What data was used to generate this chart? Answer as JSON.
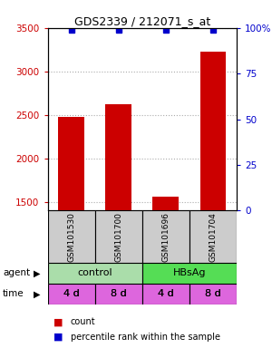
{
  "title": "GDS2339 / 212071_s_at",
  "samples": [
    "GSM101530",
    "GSM101700",
    "GSM101696",
    "GSM101704"
  ],
  "count_values": [
    2480,
    2620,
    1560,
    3230
  ],
  "percentile_values": [
    99,
    99,
    99,
    99
  ],
  "ylim_left": [
    1400,
    3500
  ],
  "ylim_right": [
    0,
    100
  ],
  "yticks_left": [
    1500,
    2000,
    2500,
    3000,
    3500
  ],
  "ytick_right_labels": [
    "0",
    "25",
    "50",
    "75",
    "100%"
  ],
  "yticks_right": [
    0,
    25,
    50,
    75,
    100
  ],
  "bar_color": "#cc0000",
  "blue_color": "#0000cc",
  "agent_color_control": "#aaddaa",
  "agent_color_hbsag": "#55dd55",
  "time_color": "#dd66dd",
  "grid_color": "#aaaaaa",
  "bar_width": 0.55,
  "sample_bg": "#cccccc"
}
